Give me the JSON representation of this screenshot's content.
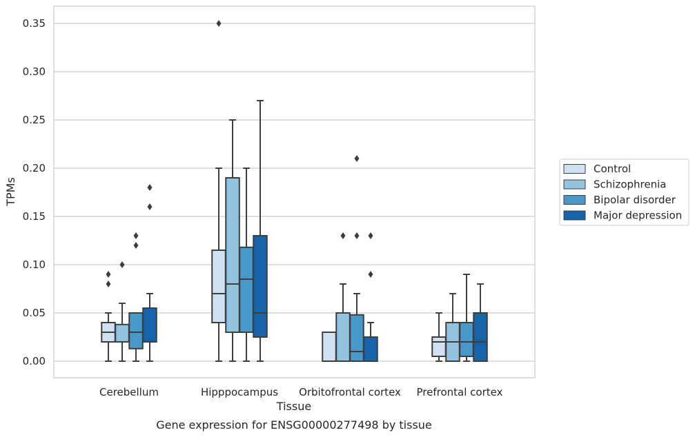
{
  "chart_data": {
    "type": "box",
    "title": "",
    "caption": "Gene expression for ENSG00000277498 by tissue",
    "xlabel": "Tissue",
    "ylabel": "TPMs",
    "ylim": [
      -0.017,
      0.368
    ],
    "yticks": [
      0.0,
      0.05,
      0.1,
      0.15,
      0.2,
      0.25,
      0.3,
      0.35
    ],
    "ytick_labels": [
      "0.00",
      "0.05",
      "0.10",
      "0.15",
      "0.20",
      "0.25",
      "0.30",
      "0.35"
    ],
    "grid": "horizontal",
    "legend_position": "right",
    "categories": [
      "Cerebellum",
      "Hipppocampus",
      "Orbitofrontal cortex",
      "Prefrontal cortex"
    ],
    "series": [
      {
        "name": "Control",
        "color": "#d0e1f2",
        "boxes": [
          {
            "whislo": 0.0,
            "q1": 0.02,
            "med": 0.03,
            "q3": 0.04,
            "whishi": 0.05,
            "fliers": [
              0.08,
              0.09
            ]
          },
          {
            "whislo": 0.0,
            "q1": 0.04,
            "med": 0.07,
            "q3": 0.115,
            "whishi": 0.2,
            "fliers": [
              0.35
            ]
          },
          {
            "whislo": 0.0,
            "q1": 0.0,
            "med": 0.0,
            "q3": 0.03,
            "whishi": 0.03,
            "fliers": []
          },
          {
            "whislo": 0.0,
            "q1": 0.005,
            "med": 0.02,
            "q3": 0.025,
            "whishi": 0.05,
            "fliers": []
          }
        ]
      },
      {
        "name": "Schizophrenia",
        "color": "#94c4df",
        "boxes": [
          {
            "whislo": 0.0,
            "q1": 0.02,
            "med": 0.02,
            "q3": 0.038,
            "whishi": 0.06,
            "fliers": [
              0.1
            ]
          },
          {
            "whislo": 0.0,
            "q1": 0.03,
            "med": 0.08,
            "q3": 0.19,
            "whishi": 0.25,
            "fliers": []
          },
          {
            "whislo": 0.0,
            "q1": 0.0,
            "med": 0.0,
            "q3": 0.05,
            "whishi": 0.08,
            "fliers": [
              0.13
            ]
          },
          {
            "whislo": 0.0,
            "q1": 0.0,
            "med": 0.02,
            "q3": 0.04,
            "whishi": 0.07,
            "fliers": []
          }
        ]
      },
      {
        "name": "Bipolar disorder",
        "color": "#4a98c9",
        "boxes": [
          {
            "whislo": 0.0,
            "q1": 0.013,
            "med": 0.03,
            "q3": 0.05,
            "whishi": 0.05,
            "fliers": [
              0.12,
              0.13
            ]
          },
          {
            "whislo": 0.0,
            "q1": 0.03,
            "med": 0.085,
            "q3": 0.118,
            "whishi": 0.2,
            "fliers": []
          },
          {
            "whislo": 0.0,
            "q1": 0.0,
            "med": 0.01,
            "q3": 0.048,
            "whishi": 0.07,
            "fliers": [
              0.13,
              0.21
            ]
          },
          {
            "whislo": 0.0,
            "q1": 0.005,
            "med": 0.02,
            "q3": 0.04,
            "whishi": 0.09,
            "fliers": []
          }
        ]
      },
      {
        "name": "Major depression",
        "color": "#1764ab",
        "boxes": [
          {
            "whislo": 0.0,
            "q1": 0.02,
            "med": 0.02,
            "q3": 0.055,
            "whishi": 0.07,
            "fliers": [
              0.16,
              0.18
            ]
          },
          {
            "whislo": 0.0,
            "q1": 0.025,
            "med": 0.05,
            "q3": 0.13,
            "whishi": 0.27,
            "fliers": []
          },
          {
            "whislo": 0.0,
            "q1": 0.0,
            "med": 0.0,
            "q3": 0.025,
            "whishi": 0.04,
            "fliers": [
              0.09,
              0.13
            ]
          },
          {
            "whislo": 0.0,
            "q1": 0.0,
            "med": 0.02,
            "q3": 0.05,
            "whishi": 0.08,
            "fliers": []
          }
        ]
      }
    ]
  }
}
